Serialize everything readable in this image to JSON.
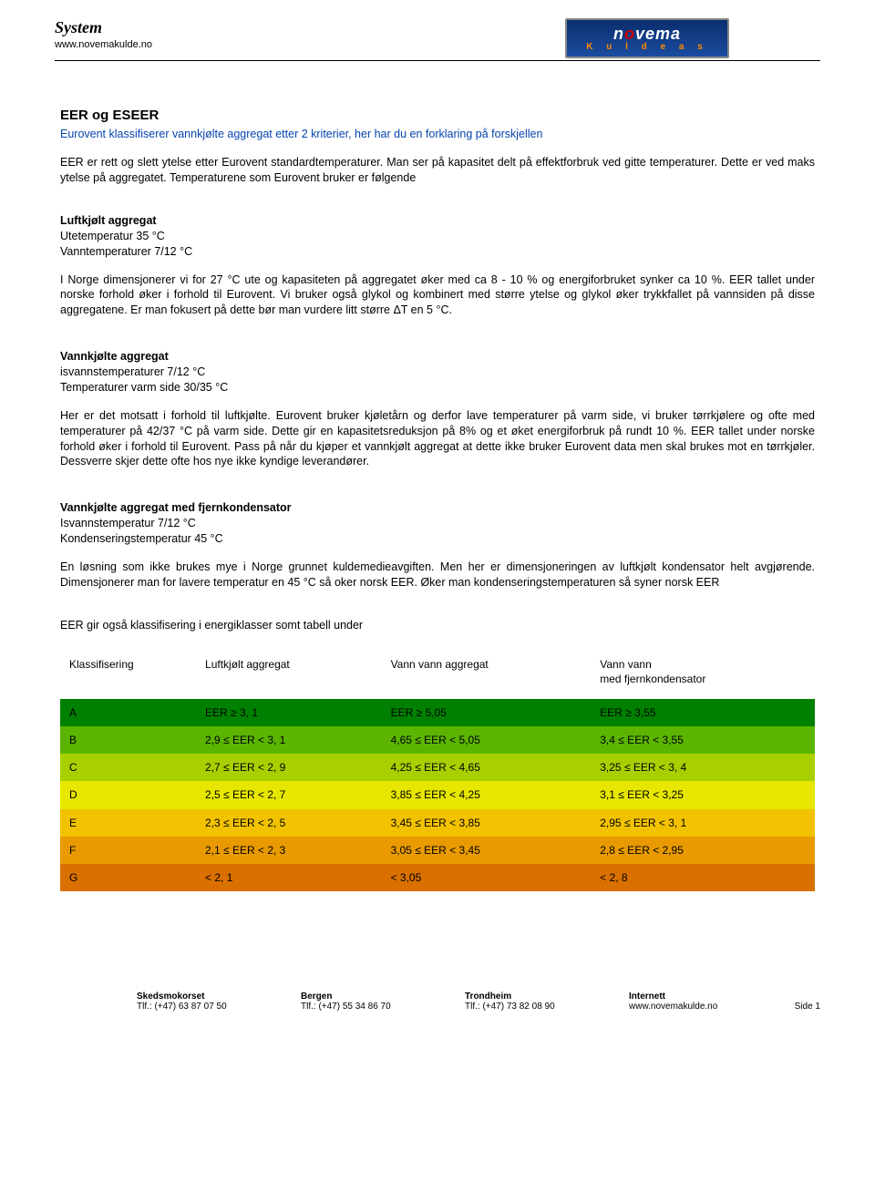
{
  "header": {
    "system_title": "System",
    "url": "www.novemakulde.no",
    "logo_main_pre": "n",
    "logo_main_o": "o",
    "logo_main_post": "vema",
    "logo_sub": "K u l d e a s"
  },
  "title": "EER og ESEER",
  "intro_blue": "Eurovent klassifiserer vannkjølte aggregat etter 2 kriterier, her har du en forklaring på forskjellen",
  "intro_p2": "EER er rett og slett ytelse etter Eurovent standardtemperaturer. Man ser på kapasitet delt på effektforbruk ved gitte temperaturer. Dette er ved maks ytelse på aggregatet. Temperaturene som Eurovent bruker er følgende",
  "sect1": {
    "title": "Luftkjølt aggregat",
    "line1": "Utetemperatur 35 °C",
    "line2": "Vanntemperaturer 7/12 °C",
    "body": "I Norge dimensjonerer vi for 27 °C  ute og kapasiteten på aggregatet øker med ca 8 - 10 % og energiforbruket synker ca 10 %. EER tallet under norske forhold øker i forhold til Eurovent. Vi bruker også glykol og kombinert med større ytelse og glykol øker trykkfallet på vannsiden på disse aggregatene. Er man fokusert på dette bør man vurdere litt større ΔT en 5 °C."
  },
  "sect2": {
    "title": "Vannkjølte aggregat",
    "line1": "isvannstemperaturer 7/12 °C",
    "line2": "Temperaturer varm side 30/35 °C",
    "body": "Her er det motsatt i forhold til luftkjølte. Eurovent bruker kjøletårn og derfor lave temperaturer på varm side, vi bruker tørrkjølere og ofte med temperaturer på 42/37 °C på varm side. Dette gir en kapasitetsreduksjon på 8% og et øket energiforbruk på rundt 10 %. EER tallet under norske forhold øker i forhold til Eurovent. Pass på når du kjøper et vannkjølt aggregat at dette ikke bruker Eurovent data men skal brukes mot en tørrkjøler. Dessverre skjer dette ofte hos nye ikke kyndige leverandører."
  },
  "sect3": {
    "title": "Vannkjølte aggregat med fjernkondensator",
    "line1": "Isvannstemperatur 7/12 °C",
    "line2": "Kondenseringstemperatur 45 °C",
    "body": "En løsning som ikke brukes mye i Norge grunnet kuldemedieavgiften. Men her er dimensjoneringen av luftkjølt kondensator helt avgjørende. Dimensjonerer man for lavere temperatur en 45 °C så oker norsk EER. Øker man kondenseringstemperaturen så syner norsk EER"
  },
  "table_intro": "EER gir også klassifisering i energiklasser somt tabell under",
  "table": {
    "headers": [
      "Klassifisering",
      "Luftkjølt aggregat",
      "Vann vann aggregat",
      "Vann vann\nmed fjernkondensator"
    ],
    "rows": [
      {
        "class": "A",
        "bg": "row-A",
        "cells": [
          "A",
          "EER   ≥   3, 1",
          "EER   ≥   5,05",
          "EER   ≥   3,55"
        ]
      },
      {
        "class": "B",
        "bg": "row-B",
        "cells": [
          "B",
          "2,9   ≤   EER < 3,  1",
          "4,65   ≤   EER < 5,05",
          "3,4   ≤   EER < 3,55"
        ]
      },
      {
        "class": "C",
        "bg": "row-C",
        "cells": [
          "C",
          "2,7   ≤   EER < 2,  9",
          "4,25   ≤   EER < 4,65",
          "3,25   ≤   EER < 3,  4"
        ]
      },
      {
        "class": "D",
        "bg": "row-D",
        "cells": [
          "D",
          "2,5   ≤   EER < 2,  7",
          "3,85   ≤   EER < 4,25",
          "3,1   ≤   EER < 3,25"
        ]
      },
      {
        "class": "E",
        "bg": "row-E",
        "cells": [
          "E",
          "2,3   ≤   EER < 2,  5",
          "3,45   ≤   EER < 3,85",
          "2,95   ≤   EER < 3,  1"
        ]
      },
      {
        "class": "F",
        "bg": "row-F",
        "cells": [
          "F",
          "2,1   ≤   EER < 2,  3",
          "3,05   ≤   EER < 3,45",
          "2,8   ≤   EER < 2,95"
        ]
      },
      {
        "class": "G",
        "bg": "row-G",
        "cells": [
          "G",
          "< 2,  1",
          "< 3,05",
          "< 2,  8"
        ]
      }
    ]
  },
  "footer": {
    "cols": [
      {
        "l1": "Skedsmokorset",
        "l2": "Tlf.: (+47) 63 87 07 50"
      },
      {
        "l1": "Bergen",
        "l2": "Tlf.:   (+47) 55 34 86 70"
      },
      {
        "l1": "Trondheim",
        "l2": "Tlf.: (+47) 73 82 08 90"
      },
      {
        "l1": "Internett",
        "l2": "www.novemakulde.no"
      }
    ],
    "side": "Side 1"
  }
}
